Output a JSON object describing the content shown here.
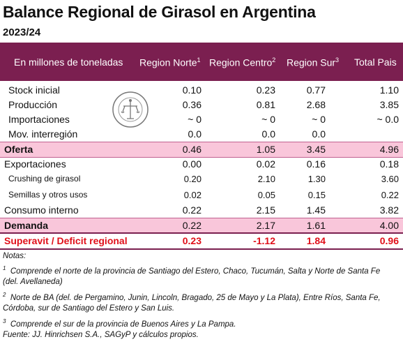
{
  "title": "Balance Regional de Girasol en Argentina",
  "subtitle": "2023/24",
  "header": {
    "unit_label": "En millones de toneladas",
    "col1": "Region Norte",
    "col1_sup": "1",
    "col2": "Region Centro",
    "col2_sup": "2",
    "col3": "Region Sur",
    "col3_sup": "3",
    "col4": "Total Pais"
  },
  "rows": [
    {
      "label": "Stock inicial",
      "v": [
        "0.10",
        "0.23",
        "0.77",
        "1.10"
      ]
    },
    {
      "label": "Producción",
      "v": [
        "0.36",
        "0.81",
        "2.68",
        "3.85"
      ]
    },
    {
      "label": "Importaciones",
      "v": [
        "~ 0",
        "~ 0",
        "~ 0",
        "~ 0.0"
      ]
    },
    {
      "label": "Mov. interregión",
      "v": [
        "0.0",
        "0.0",
        "0.0",
        ""
      ]
    },
    {
      "label": "Oferta",
      "v": [
        "0.46",
        "1.05",
        "3.45",
        "4.96"
      ]
    },
    {
      "label": "Exportaciones",
      "v": [
        "0.00",
        "0.02",
        "0.16",
        "0.18"
      ]
    },
    {
      "label": "Crushing de girasol",
      "v": [
        "0.20",
        "2.10",
        "1.30",
        "3.60"
      ]
    },
    {
      "label": "Semillas y otros usos",
      "v": [
        "0.02",
        "0.05",
        "0.15",
        "0.22"
      ]
    },
    {
      "label": "Consumo interno",
      "v": [
        "0.22",
        "2.15",
        "1.45",
        "3.82"
      ]
    },
    {
      "label": "Demanda",
      "v": [
        "0.22",
        "2.17",
        "1.61",
        "4.00"
      ]
    },
    {
      "label": "Superavit / Deficit regional",
      "v": [
        "0.23",
        "-1.12",
        "1.84",
        "0.96"
      ]
    }
  ],
  "seal_text": "BOLSA DE COMERCIO DE ROSARIO",
  "notes": {
    "heading": "Notas:",
    "n1_sup": "1",
    "n1_line1": "Comprende el norte de la provincia de Santiago del Estero, Chaco, Tucumán, Salta y Norte de Santa Fe",
    "n1_line2": "(del. Avellaneda)",
    "n2_sup": "2",
    "n2_line1": "Norte de BA (del. de Pergamino, Junin, Lincoln, Bragado, 25 de Mayo y La Plata), Entre Ríos, Santa Fe,",
    "n2_line2": "Córdoba, sur de Santiago del Estero y San Luis.",
    "n3_sup": "3",
    "n3_line1": "Comprende el sur de la provincia de Buenos Aires y La Pampa.",
    "source": "Fuente: JJ. Hinrichsen S.A., SAGyP y cálculos propios."
  },
  "colors": {
    "header_bg": "#7b1f50",
    "highlight": "#f9c6da",
    "deficit_text": "#e0101a"
  }
}
